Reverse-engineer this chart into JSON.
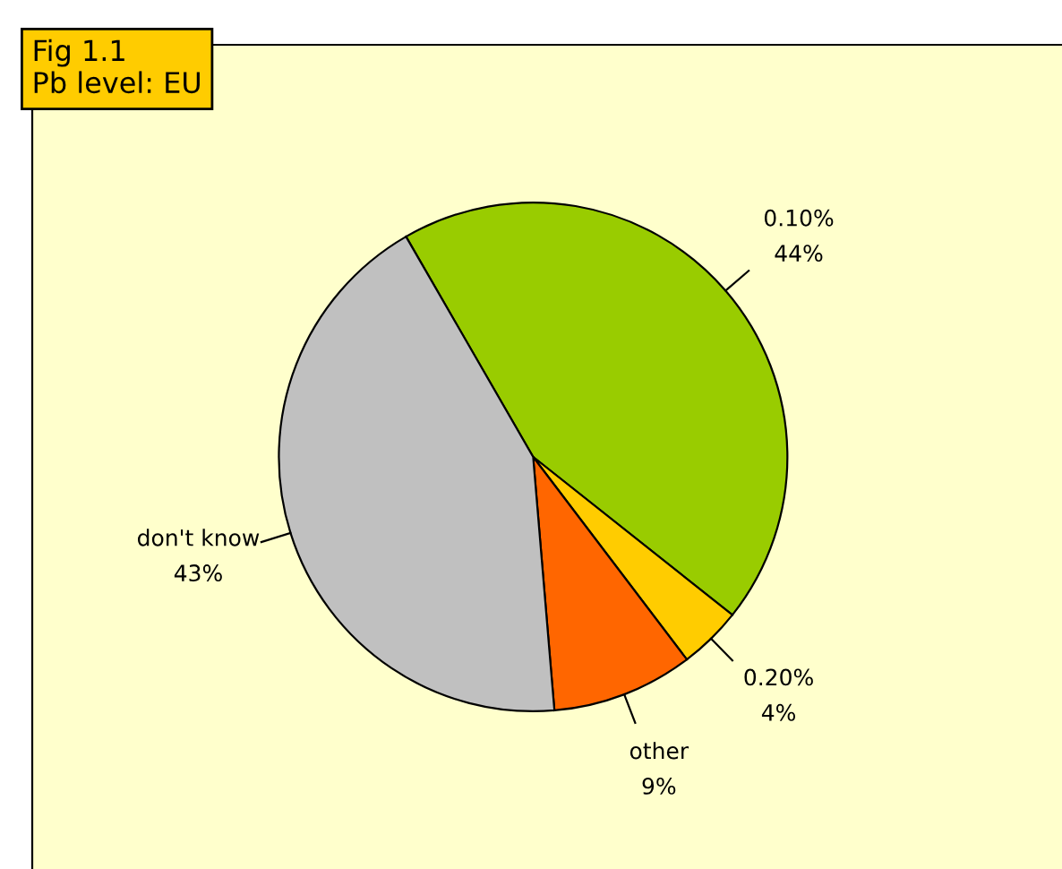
{
  "chart_data": {
    "type": "pie",
    "title": "Fig 1.1\nPb level: EU",
    "categories": [
      "0.10%",
      "0.20%",
      "other",
      "don't know"
    ],
    "values": [
      44,
      4,
      9,
      43
    ],
    "value_labels": [
      "44%",
      "4%",
      "9%",
      "43%"
    ],
    "colors": [
      "#99cc00",
      "#ffcc00",
      "#ff6600",
      "#c0c0c0"
    ]
  }
}
